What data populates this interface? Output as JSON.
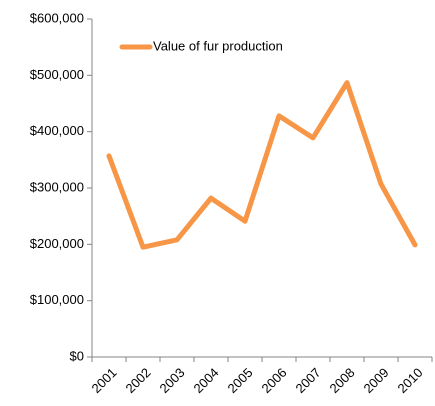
{
  "chart_data": {
    "type": "line",
    "categories": [
      "2001",
      "2002",
      "2003",
      "2004",
      "2005",
      "2006",
      "2007",
      "2008",
      "2009",
      "2010"
    ],
    "series": [
      {
        "name": "Value of fur production",
        "color": "#f79646",
        "values": [
          357000,
          195000,
          208000,
          282000,
          241000,
          428000,
          389000,
          487000,
          307000,
          199000
        ]
      }
    ],
    "ylim": [
      0,
      600000
    ],
    "yticks": [
      {
        "value": 0,
        "label": "$0"
      },
      {
        "value": 100000,
        "label": "$100,000"
      },
      {
        "value": 200000,
        "label": "$200,000"
      },
      {
        "value": 300000,
        "label": "$300,000"
      },
      {
        "value": 400000,
        "label": "$400,000"
      },
      {
        "value": 500000,
        "label": "$500,000"
      },
      {
        "value": 600000,
        "label": "$600,000"
      }
    ],
    "grid": false,
    "legend": "top-left"
  }
}
